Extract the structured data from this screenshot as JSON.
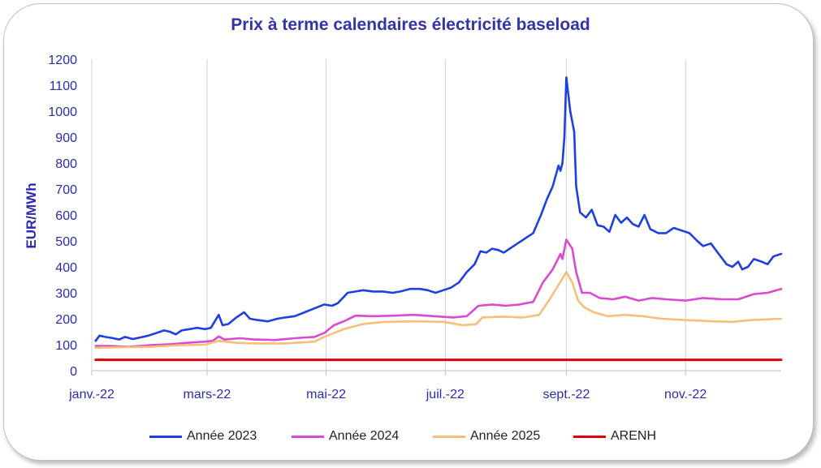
{
  "chart_data": {
    "type": "line",
    "title": "Prix à terme calendaires électricité baseload",
    "ylabel": "EUR/MWh",
    "xlabel": "",
    "ylim": [
      0,
      1200
    ],
    "yticks": [
      0,
      100,
      200,
      300,
      400,
      500,
      600,
      700,
      800,
      900,
      1000,
      1100,
      1200
    ],
    "xlim": [
      "2022-01-01",
      "2022-12-20"
    ],
    "xticks": [
      {
        "date": "2022-01-01",
        "label": "janv.-22"
      },
      {
        "date": "2022-03-01",
        "label": "mars-22"
      },
      {
        "date": "2022-05-01",
        "label": "mai-22"
      },
      {
        "date": "2022-07-01",
        "label": "juil.-22"
      },
      {
        "date": "2022-09-01",
        "label": "sept.-22"
      },
      {
        "date": "2022-11-01",
        "label": "nov.-22"
      }
    ],
    "grid": "vertical",
    "legend_position": "bottom",
    "series": [
      {
        "name": "Année 2023",
        "color": "#1f3fe0",
        "points": [
          [
            "2022-01-03",
            115
          ],
          [
            "2022-01-05",
            135
          ],
          [
            "2022-01-08",
            130
          ],
          [
            "2022-01-12",
            125
          ],
          [
            "2022-01-15",
            120
          ],
          [
            "2022-01-18",
            130
          ],
          [
            "2022-01-22",
            122
          ],
          [
            "2022-01-26",
            128
          ],
          [
            "2022-01-30",
            135
          ],
          [
            "2022-02-03",
            145
          ],
          [
            "2022-02-07",
            155
          ],
          [
            "2022-02-10",
            150
          ],
          [
            "2022-02-13",
            140
          ],
          [
            "2022-02-16",
            155
          ],
          [
            "2022-02-20",
            160
          ],
          [
            "2022-02-24",
            165
          ],
          [
            "2022-02-28",
            160
          ],
          [
            "2022-03-03",
            165
          ],
          [
            "2022-03-07",
            215
          ],
          [
            "2022-03-09",
            175
          ],
          [
            "2022-03-12",
            180
          ],
          [
            "2022-03-16",
            205
          ],
          [
            "2022-03-20",
            225
          ],
          [
            "2022-03-23",
            200
          ],
          [
            "2022-03-27",
            195
          ],
          [
            "2022-04-01",
            190
          ],
          [
            "2022-04-06",
            200
          ],
          [
            "2022-04-10",
            205
          ],
          [
            "2022-04-15",
            210
          ],
          [
            "2022-04-20",
            225
          ],
          [
            "2022-04-25",
            240
          ],
          [
            "2022-04-30",
            255
          ],
          [
            "2022-05-04",
            250
          ],
          [
            "2022-05-07",
            260
          ],
          [
            "2022-05-12",
            300
          ],
          [
            "2022-05-16",
            305
          ],
          [
            "2022-05-20",
            310
          ],
          [
            "2022-05-25",
            305
          ],
          [
            "2022-05-30",
            305
          ],
          [
            "2022-06-04",
            300
          ],
          [
            "2022-06-08",
            305
          ],
          [
            "2022-06-13",
            315
          ],
          [
            "2022-06-18",
            315
          ],
          [
            "2022-06-22",
            310
          ],
          [
            "2022-06-26",
            300
          ],
          [
            "2022-06-30",
            310
          ],
          [
            "2022-07-04",
            320
          ],
          [
            "2022-07-08",
            340
          ],
          [
            "2022-07-12",
            380
          ],
          [
            "2022-07-16",
            410
          ],
          [
            "2022-07-19",
            460
          ],
          [
            "2022-07-22",
            455
          ],
          [
            "2022-07-25",
            470
          ],
          [
            "2022-07-28",
            465
          ],
          [
            "2022-07-31",
            455
          ],
          [
            "2022-08-03",
            470
          ],
          [
            "2022-08-07",
            490
          ],
          [
            "2022-08-11",
            510
          ],
          [
            "2022-08-15",
            530
          ],
          [
            "2022-08-19",
            600
          ],
          [
            "2022-08-22",
            660
          ],
          [
            "2022-08-25",
            710
          ],
          [
            "2022-08-28",
            790
          ],
          [
            "2022-08-29",
            770
          ],
          [
            "2022-08-30",
            800
          ],
          [
            "2022-08-31",
            900
          ],
          [
            "2022-09-01",
            1130
          ],
          [
            "2022-09-03",
            1000
          ],
          [
            "2022-09-05",
            920
          ],
          [
            "2022-09-06",
            710
          ],
          [
            "2022-09-08",
            610
          ],
          [
            "2022-09-11",
            590
          ],
          [
            "2022-09-14",
            620
          ],
          [
            "2022-09-17",
            560
          ],
          [
            "2022-09-20",
            555
          ],
          [
            "2022-09-23",
            535
          ],
          [
            "2022-09-26",
            600
          ],
          [
            "2022-09-29",
            570
          ],
          [
            "2022-10-02",
            590
          ],
          [
            "2022-10-05",
            565
          ],
          [
            "2022-10-08",
            555
          ],
          [
            "2022-10-11",
            600
          ],
          [
            "2022-10-14",
            545
          ],
          [
            "2022-10-18",
            530
          ],
          [
            "2022-10-22",
            530
          ],
          [
            "2022-10-26",
            550
          ],
          [
            "2022-10-30",
            540
          ],
          [
            "2022-11-03",
            530
          ],
          [
            "2022-11-07",
            500
          ],
          [
            "2022-11-10",
            480
          ],
          [
            "2022-11-14",
            490
          ],
          [
            "2022-11-18",
            450
          ],
          [
            "2022-11-22",
            410
          ],
          [
            "2022-11-25",
            400
          ],
          [
            "2022-11-28",
            420
          ],
          [
            "2022-11-30",
            390
          ],
          [
            "2022-12-03",
            400
          ],
          [
            "2022-12-06",
            430
          ],
          [
            "2022-12-10",
            420
          ],
          [
            "2022-12-13",
            410
          ],
          [
            "2022-12-16",
            440
          ],
          [
            "2022-12-20",
            450
          ]
        ]
      },
      {
        "name": "Année 2024",
        "color": "#d94ad0",
        "points": [
          [
            "2022-01-03",
            95
          ],
          [
            "2022-01-10",
            95
          ],
          [
            "2022-01-20",
            92
          ],
          [
            "2022-01-31",
            98
          ],
          [
            "2022-02-10",
            102
          ],
          [
            "2022-02-20",
            108
          ],
          [
            "2022-02-28",
            112
          ],
          [
            "2022-03-04",
            115
          ],
          [
            "2022-03-07",
            132
          ],
          [
            "2022-03-10",
            120
          ],
          [
            "2022-03-18",
            125
          ],
          [
            "2022-03-25",
            120
          ],
          [
            "2022-04-05",
            118
          ],
          [
            "2022-04-15",
            125
          ],
          [
            "2022-04-25",
            130
          ],
          [
            "2022-04-30",
            145
          ],
          [
            "2022-05-05",
            175
          ],
          [
            "2022-05-10",
            190
          ],
          [
            "2022-05-16",
            212
          ],
          [
            "2022-05-25",
            210
          ],
          [
            "2022-06-05",
            212
          ],
          [
            "2022-06-15",
            215
          ],
          [
            "2022-06-25",
            210
          ],
          [
            "2022-07-05",
            205
          ],
          [
            "2022-07-12",
            210
          ],
          [
            "2022-07-18",
            250
          ],
          [
            "2022-07-25",
            255
          ],
          [
            "2022-08-01",
            250
          ],
          [
            "2022-08-08",
            255
          ],
          [
            "2022-08-15",
            265
          ],
          [
            "2022-08-20",
            340
          ],
          [
            "2022-08-25",
            390
          ],
          [
            "2022-08-29",
            450
          ],
          [
            "2022-08-30",
            430
          ],
          [
            "2022-09-01",
            505
          ],
          [
            "2022-09-04",
            470
          ],
          [
            "2022-09-06",
            380
          ],
          [
            "2022-09-09",
            300
          ],
          [
            "2022-09-13",
            300
          ],
          [
            "2022-09-18",
            280
          ],
          [
            "2022-09-25",
            275
          ],
          [
            "2022-10-01",
            285
          ],
          [
            "2022-10-08",
            270
          ],
          [
            "2022-10-15",
            280
          ],
          [
            "2022-10-22",
            275
          ],
          [
            "2022-11-01",
            270
          ],
          [
            "2022-11-10",
            280
          ],
          [
            "2022-11-20",
            275
          ],
          [
            "2022-11-28",
            275
          ],
          [
            "2022-12-06",
            295
          ],
          [
            "2022-12-13",
            300
          ],
          [
            "2022-12-20",
            315
          ]
        ]
      },
      {
        "name": "Année 2025",
        "color": "#f5c077",
        "points": [
          [
            "2022-01-03",
            88
          ],
          [
            "2022-01-15",
            90
          ],
          [
            "2022-01-31",
            92
          ],
          [
            "2022-02-15",
            98
          ],
          [
            "2022-02-28",
            100
          ],
          [
            "2022-03-07",
            115
          ],
          [
            "2022-03-15",
            108
          ],
          [
            "2022-03-25",
            105
          ],
          [
            "2022-04-10",
            105
          ],
          [
            "2022-04-25",
            112
          ],
          [
            "2022-04-30",
            130
          ],
          [
            "2022-05-10",
            160
          ],
          [
            "2022-05-20",
            180
          ],
          [
            "2022-05-31",
            188
          ],
          [
            "2022-06-15",
            190
          ],
          [
            "2022-06-30",
            188
          ],
          [
            "2022-07-10",
            175
          ],
          [
            "2022-07-17",
            180
          ],
          [
            "2022-07-20",
            205
          ],
          [
            "2022-07-30",
            208
          ],
          [
            "2022-08-10",
            205
          ],
          [
            "2022-08-18",
            215
          ],
          [
            "2022-08-23",
            270
          ],
          [
            "2022-08-28",
            330
          ],
          [
            "2022-09-01",
            380
          ],
          [
            "2022-09-04",
            340
          ],
          [
            "2022-09-07",
            270
          ],
          [
            "2022-09-10",
            245
          ],
          [
            "2022-09-15",
            225
          ],
          [
            "2022-09-22",
            210
          ],
          [
            "2022-10-01",
            215
          ],
          [
            "2022-10-10",
            210
          ],
          [
            "2022-10-20",
            200
          ],
          [
            "2022-11-01",
            195
          ],
          [
            "2022-11-15",
            190
          ],
          [
            "2022-11-25",
            188
          ],
          [
            "2022-12-05",
            195
          ],
          [
            "2022-12-20",
            200
          ]
        ]
      },
      {
        "name": "ARENH",
        "color": "#e00000",
        "points": [
          [
            "2022-01-03",
            42
          ],
          [
            "2022-12-20",
            42
          ]
        ]
      }
    ]
  }
}
